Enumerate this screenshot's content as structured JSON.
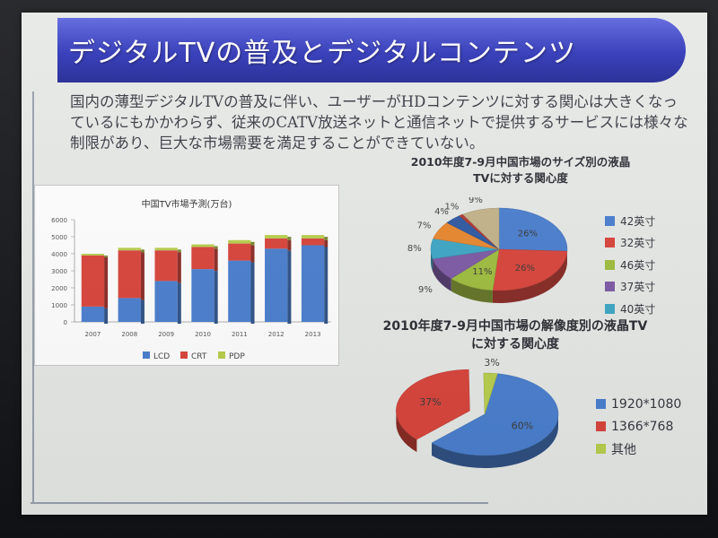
{
  "slide": {
    "title": "デジタルTVの普及とデジタルコンテンツ",
    "body": "国内の薄型デジタルTVの普及に伴い、ユーザーがHDコンテンツに対する関心は大きくなっているにもかかわらず、従来のCATV放送ネットと通信ネットで提供するサービスには様々な制限があり、巨大な市場需要を満足することができていない。"
  },
  "chart_data": [
    {
      "type": "bar",
      "stacked": true,
      "title": "中国TV市場予測(万台)",
      "categories": [
        "2007",
        "2008",
        "2009",
        "2010",
        "2011",
        "2012",
        "2013"
      ],
      "series": [
        {
          "name": "LCD",
          "color": "#4a7fcf",
          "values": [
            900,
            1400,
            2400,
            3100,
            3600,
            4300,
            4500
          ]
        },
        {
          "name": "CRT",
          "color": "#d9453c",
          "values": [
            3000,
            2800,
            1800,
            1300,
            1000,
            600,
            400
          ]
        },
        {
          "name": "PDP",
          "color": "#b9cf4c",
          "values": [
            100,
            150,
            150,
            150,
            200,
            200,
            200
          ]
        }
      ],
      "ylim": [
        0,
        6000
      ],
      "yticks": [
        "0",
        "1000",
        "2000",
        "3000",
        "4000",
        "5000",
        "6000"
      ],
      "xlabel": "",
      "ylabel": "",
      "grid": false,
      "legend": "bottom"
    },
    {
      "type": "pie",
      "title": "2010年度7-9月中国市場のサイズ別の液晶TVに対する関心度",
      "legend": "right",
      "slices": [
        {
          "name": "42英寸",
          "color": "#4a7fcf",
          "value": 26,
          "label": "26%"
        },
        {
          "name": "32英寸",
          "color": "#d9453c",
          "value": 26,
          "label": "26%"
        },
        {
          "name": "46英寸",
          "color": "#9fbd3f",
          "value": 11,
          "label": "11%"
        },
        {
          "name": "37英寸",
          "color": "#7e5ba6",
          "value": 9,
          "label": "9%"
        },
        {
          "name": "40英寸",
          "color": "#3ea7c6",
          "value": 8,
          "label": "8%"
        },
        {
          "name": "",
          "color": "#e8882f",
          "value": 7,
          "label": "7%"
        },
        {
          "name": "",
          "color": "#2f5aa3",
          "value": 4,
          "label": "4%"
        },
        {
          "name": "",
          "color": "#b03a35",
          "value": 1,
          "label": "1%"
        },
        {
          "name": "",
          "color": "#c4b38a",
          "value": 9,
          "label": "9%"
        }
      ]
    },
    {
      "type": "pie",
      "title": "2010年度7-9月中国市場の解像度別の液晶TVに対する関心度",
      "legend": "right",
      "slices": [
        {
          "name": "1920*1080",
          "color": "#4a7fcf",
          "value": 60,
          "label": "60%"
        },
        {
          "name": "1366*768",
          "color": "#d9453c",
          "value": 37,
          "label": "37%"
        },
        {
          "name": "其他",
          "color": "#b9cf4c",
          "value": 3,
          "label": "3%"
        }
      ]
    }
  ]
}
